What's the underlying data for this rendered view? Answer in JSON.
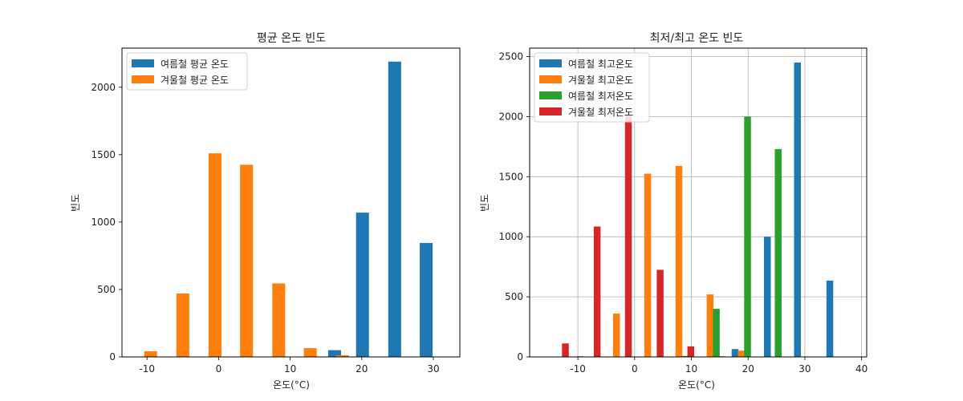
{
  "chart_data": [
    {
      "type": "bar",
      "title": "평균 온도 빈도",
      "xlabel": "온도(°C)",
      "ylabel": "빈도",
      "xlim": [
        -13.5,
        33.7
      ],
      "ylim": [
        0,
        2290
      ],
      "xticks": [
        -10,
        0,
        10,
        20,
        30
      ],
      "yticks": [
        0,
        500,
        1000,
        1500,
        2000
      ],
      "grid": false,
      "legend_position": "upper-left",
      "bar_width": 1.8,
      "series": [
        {
          "name": "여름철 평균 온도",
          "color": "#1f77b4",
          "x": [
            16.2,
            20.1,
            24.6,
            29.0
          ],
          "values": [
            50,
            1070,
            2190,
            845
          ]
        },
        {
          "name": "겨울철 평균 온도",
          "color": "#ff7f0e",
          "x": [
            -9.5,
            -5.0,
            -0.5,
            3.9,
            8.4,
            12.8,
            17.3
          ],
          "values": [
            42,
            470,
            1510,
            1425,
            545,
            65,
            12
          ]
        }
      ]
    },
    {
      "type": "bar",
      "title": "최저/최고 온도 빈도",
      "xlabel": "온도(°C)",
      "ylabel": "빈도",
      "xlim": [
        -18.5,
        40.9
      ],
      "ylim": [
        0,
        2570
      ],
      "xticks": [
        -10,
        0,
        10,
        20,
        30,
        40
      ],
      "yticks": [
        0,
        500,
        1000,
        1500,
        2000,
        2500
      ],
      "grid": true,
      "legend_position": "upper-left",
      "bar_width": 1.2,
      "series": [
        {
          "name": "여름철 최고온도",
          "color": "#1f77b4",
          "x": [
            17.7,
            23.4,
            28.7,
            34.4
          ],
          "values": [
            65,
            1000,
            2450,
            635
          ]
        },
        {
          "name": "겨울철 최고온도",
          "color": "#ff7f0e",
          "x": [
            -3.2,
            2.3,
            7.8,
            13.3,
            18.8
          ],
          "values": [
            360,
            1525,
            1590,
            520,
            52
          ]
        },
        {
          "name": "여름철 최저온도",
          "color": "#2ca02c",
          "x": [
            8.8,
            14.4,
            19.9,
            25.3
          ],
          "values": [
            8,
            400,
            2000,
            1730
          ]
        },
        {
          "name": "겨울철 최저온도",
          "color": "#d62728",
          "x": [
            -12.2,
            -9.6,
            -6.6,
            -1.1,
            4.5,
            9.9,
            15.4
          ],
          "values": [
            112,
            5,
            1085,
            2010,
            725,
            88,
            5
          ]
        }
      ]
    }
  ]
}
